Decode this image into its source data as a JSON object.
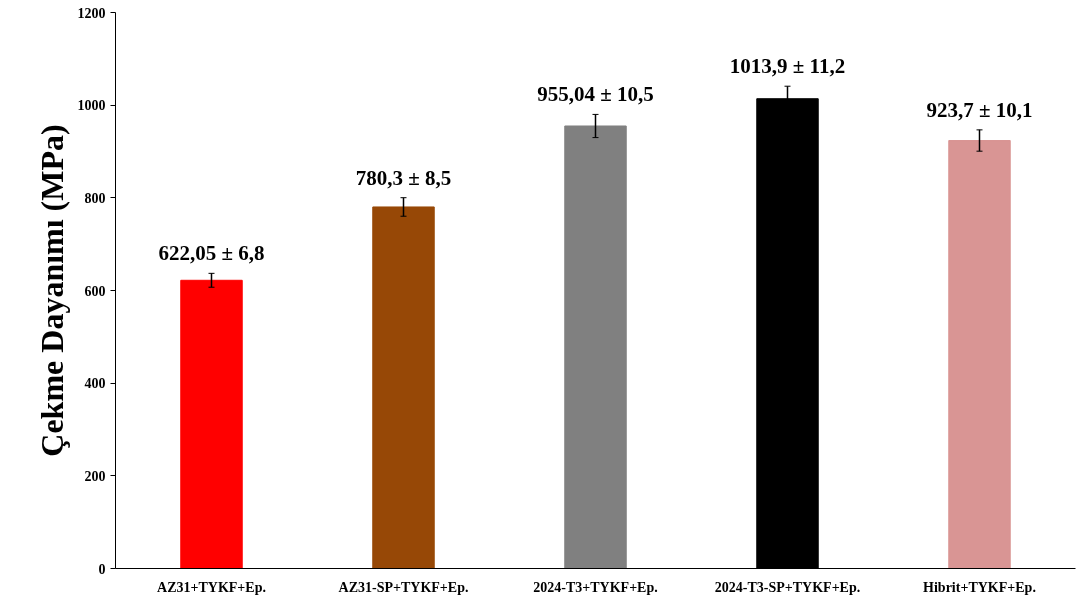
{
  "chart_data": {
    "type": "bar",
    "ylabel": "Çekme Dayanımı (MPa)",
    "categories": [
      "AZ31+TYKF+Ep.",
      "AZ31-SP+TYKF+Ep.",
      "2024-T3+TYKF+Ep.",
      "2024-T3-SP+TYKF+Ep.",
      "Hibrit+TYKF+Ep."
    ],
    "values": [
      622.05,
      780.3,
      955.04,
      1013.9,
      923.7
    ],
    "colors": [
      "#ff0000",
      "#974806",
      "#808080",
      "#000000",
      "#d99594"
    ],
    "errors": [
      15,
      20,
      25,
      27,
      23
    ],
    "value_labels": [
      "622,05 ± 6,8",
      "780,3 ± 8,5",
      "955,04 ± 10,5",
      "1013,9 ± 11,2",
      "923,7 ± 10,1"
    ],
    "ylim": [
      0,
      1200
    ],
    "yticks": [
      0,
      200,
      400,
      600,
      800,
      1000,
      1200
    ],
    "grid": false
  }
}
